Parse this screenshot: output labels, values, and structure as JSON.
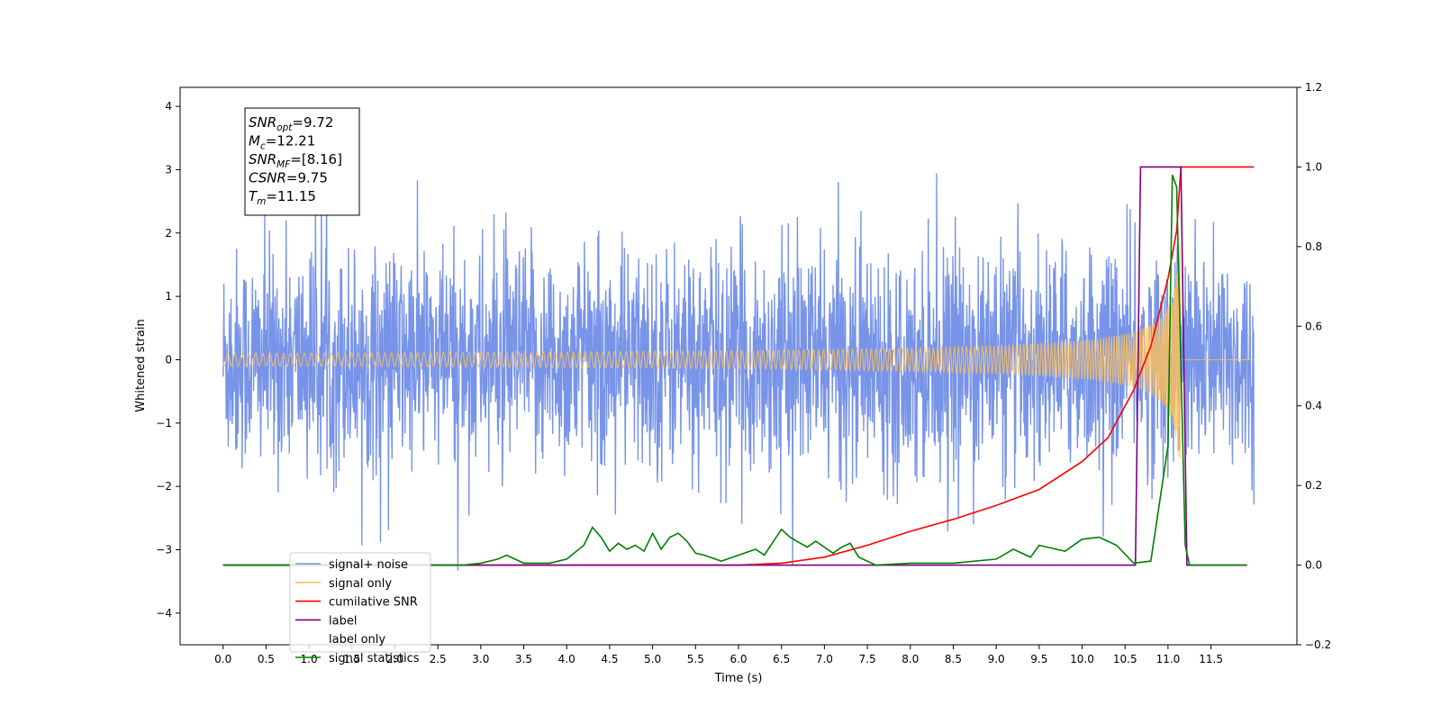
{
  "chart_data": {
    "type": "line",
    "title": "",
    "xlabel": "Time (s)",
    "ylabel": "Whitened strain",
    "y2label": "",
    "xlim": [
      -0.5,
      12.5
    ],
    "ylim": [
      -4.5,
      4.3
    ],
    "y2lim": [
      -0.2,
      1.2
    ],
    "x_ticks": [
      "0.0",
      "0.5",
      "1.0",
      "1.5",
      "2.0",
      "2.5",
      "3.0",
      "3.5",
      "4.0",
      "4.5",
      "5.0",
      "5.5",
      "6.0",
      "6.5",
      "7.0",
      "7.5",
      "8.0",
      "8.5",
      "9.0",
      "9.5",
      "10.0",
      "10.5",
      "11.0",
      "11.5"
    ],
    "y_ticks": [
      "4",
      "3",
      "2",
      "1",
      "0",
      "−1",
      "−2",
      "−3",
      "−4"
    ],
    "y2_ticks": [
      "1.2",
      "1.0",
      "0.8",
      "0.6",
      "0.4",
      "0.2",
      "0.0",
      "−0.2"
    ],
    "grid": false,
    "legend_position": "lower-left",
    "annotation": {
      "lines": [
        {
          "sym": "SNR",
          "sub": "opt",
          "value": "=9.72"
        },
        {
          "sym": "M",
          "sub": "c",
          "value": "=12.21"
        },
        {
          "sym": "SNR",
          "sub": "MF",
          "value": "=[8.16]"
        },
        {
          "sym": "CSNR",
          "sub": "",
          "value": "=9.75"
        },
        {
          "sym": "T",
          "sub": "m",
          "value": "=11.15"
        }
      ]
    },
    "series": [
      {
        "name": "signal+ noise",
        "axis": "left",
        "color": "#7894e8",
        "style": "noise",
        "x_range": [
          0.0,
          12.0
        ],
        "envelope_typical": 1.2,
        "extreme_range": [
          -3.9,
          3.75
        ]
      },
      {
        "name": "signal only",
        "axis": "left",
        "color": "#ffc15a",
        "style": "chirp",
        "x_range": [
          0.0,
          12.0
        ],
        "merger_time": 11.15,
        "amplitude_at_merger": 2.2
      },
      {
        "name": "cumilative SNR",
        "axis": "right",
        "color": "#ff0000",
        "style": "line",
        "x": [
          0.0,
          6.0,
          6.5,
          7.0,
          7.5,
          8.0,
          8.5,
          9.0,
          9.5,
          10.0,
          10.3,
          10.6,
          10.8,
          11.0,
          11.1,
          11.15,
          12.0
        ],
        "y": [
          0.0,
          0.0,
          0.005,
          0.02,
          0.05,
          0.085,
          0.115,
          0.15,
          0.19,
          0.26,
          0.32,
          0.44,
          0.55,
          0.72,
          0.84,
          1.0,
          1.0
        ]
      },
      {
        "name": "label",
        "axis": "right",
        "color": "#800080",
        "style": "line",
        "x": [
          0.0,
          10.62,
          10.68,
          11.15,
          11.22,
          11.92
        ],
        "y": [
          0.0,
          0.0,
          1.0,
          1.0,
          0.0,
          0.0
        ]
      },
      {
        "name": "label only",
        "axis": "right",
        "color": "#ffffff",
        "style": "hidden",
        "x": [],
        "y": []
      },
      {
        "name": "signal statistics",
        "axis": "right",
        "color": "#008000",
        "style": "line",
        "x": [
          0.0,
          2.8,
          3.0,
          3.2,
          3.3,
          3.5,
          3.8,
          4.0,
          4.2,
          4.3,
          4.4,
          4.5,
          4.6,
          4.7,
          4.8,
          4.9,
          5.0,
          5.1,
          5.2,
          5.3,
          5.4,
          5.5,
          5.6,
          5.8,
          6.0,
          6.2,
          6.3,
          6.5,
          6.6,
          6.8,
          6.9,
          7.1,
          7.2,
          7.3,
          7.4,
          7.6,
          8.0,
          8.5,
          9.0,
          9.2,
          9.4,
          9.5,
          9.8,
          10.0,
          10.2,
          10.4,
          10.6,
          10.8,
          11.0,
          11.05,
          11.1,
          11.15,
          11.2,
          11.25,
          11.9
        ],
        "y": [
          0.0,
          0.0,
          0.005,
          0.015,
          0.025,
          0.005,
          0.005,
          0.015,
          0.05,
          0.095,
          0.07,
          0.035,
          0.055,
          0.04,
          0.05,
          0.035,
          0.08,
          0.04,
          0.07,
          0.08,
          0.06,
          0.03,
          0.025,
          0.01,
          0.025,
          0.04,
          0.025,
          0.09,
          0.07,
          0.045,
          0.06,
          0.03,
          0.045,
          0.055,
          0.02,
          0.0,
          0.005,
          0.005,
          0.015,
          0.04,
          0.02,
          0.05,
          0.035,
          0.065,
          0.07,
          0.05,
          0.005,
          0.01,
          0.3,
          0.98,
          0.95,
          0.5,
          0.05,
          0.0,
          0.0
        ]
      }
    ]
  }
}
